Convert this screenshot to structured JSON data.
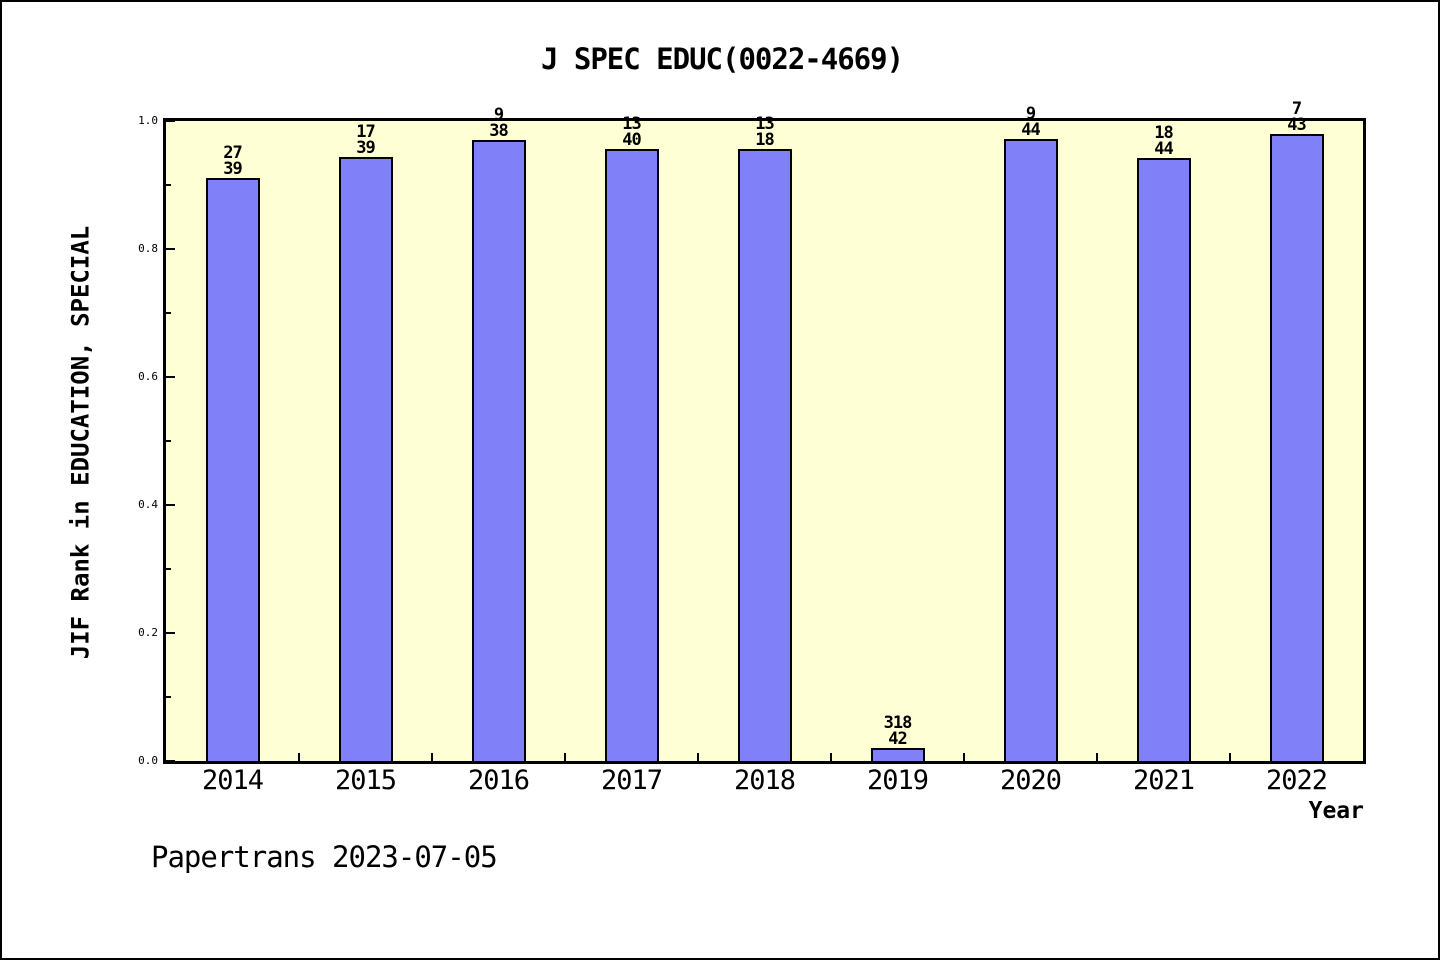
{
  "page": {
    "background": "#ffffff",
    "border_color": "#000000"
  },
  "footer": {
    "text": "Papertrans 2023-07-05"
  },
  "chart_data": {
    "type": "bar",
    "title": "J SPEC EDUC(0022-4669)",
    "xlabel": "Year",
    "ylabel": "JIF Rank in EDUCATION, SPECIAL",
    "categories": [
      "2014",
      "2015",
      "2016",
      "2017",
      "2018",
      "2019",
      "2020",
      "2021",
      "2022"
    ],
    "values": [
      0.911,
      0.944,
      0.97,
      0.956,
      0.957,
      0.02,
      0.972,
      0.942,
      0.98
    ],
    "bar_labels": [
      {
        "top": "27",
        "bottom": "39"
      },
      {
        "top": "17",
        "bottom": "39"
      },
      {
        "top": "9",
        "bottom": "38"
      },
      {
        "top": "13",
        "bottom": "40"
      },
      {
        "top": "13",
        "bottom": "18"
      },
      {
        "top": "318",
        "bottom": "42"
      },
      {
        "top": "9",
        "bottom": "44"
      },
      {
        "top": "18",
        "bottom": "44"
      },
      {
        "top": "7",
        "bottom": "43"
      }
    ],
    "ylim": [
      0.0,
      1.0
    ],
    "ytick_values": [
      0.0,
      0.2,
      0.4,
      0.6,
      0.8,
      1.0
    ],
    "ytick_labels": [
      "0.0",
      "0.2",
      "0.4",
      "0.6",
      "0.8",
      "1.0"
    ],
    "ytick_minor_values": [
      0.1,
      0.3,
      0.5,
      0.7,
      0.9
    ],
    "grid": false,
    "legend": "none",
    "plot_bg": "#ffffd6",
    "bar_fill": "#8080f8",
    "bar_border": "#000000",
    "frame_color": "#000000"
  }
}
